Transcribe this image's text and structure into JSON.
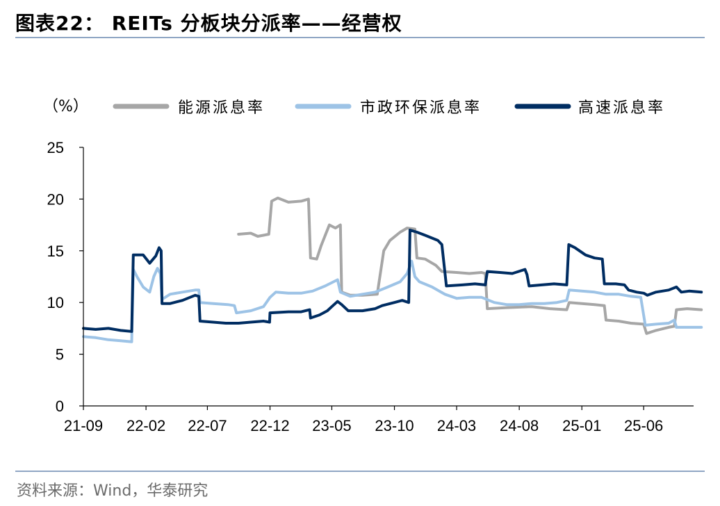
{
  "title": "图表22：  REITs 分板块分派率——经营权",
  "source": "资料来源：Wind，华泰研究",
  "chart_data": {
    "type": "line",
    "unit_label": "（%）",
    "ylim": [
      0,
      25
    ],
    "yticks": [
      "0",
      "5",
      "10",
      "15",
      "20",
      "25"
    ],
    "xticks": [
      "21-09",
      "22-02",
      "22-07",
      "22-12",
      "23-05",
      "23-10",
      "24-03",
      "24-08",
      "25-01",
      "25-06"
    ],
    "xrange": [
      "2021-09",
      "2025-10"
    ],
    "legend_position": "top",
    "series": [
      {
        "name": "能源派息率",
        "color": "#a6a6a6",
        "points": [
          [
            "2022-09-15",
            16.6
          ],
          [
            "2022-10-15",
            16.7
          ],
          [
            "2022-11-01",
            16.4
          ],
          [
            "2022-11-28",
            16.6
          ],
          [
            "2022-12-05",
            19.8
          ],
          [
            "2022-12-20",
            20.1
          ],
          [
            "2023-01-15",
            19.7
          ],
          [
            "2023-02-15",
            19.8
          ],
          [
            "2023-03-05",
            20.0
          ],
          [
            "2023-03-10",
            14.3
          ],
          [
            "2023-03-25",
            14.2
          ],
          [
            "2023-04-05",
            15.5
          ],
          [
            "2023-04-15",
            16.5
          ],
          [
            "2023-04-25",
            17.5
          ],
          [
            "2023-05-10",
            17.2
          ],
          [
            "2023-05-22",
            17.5
          ],
          [
            "2023-05-25",
            11.0
          ],
          [
            "2023-06-15",
            10.7
          ],
          [
            "2023-07-15",
            10.7
          ],
          [
            "2023-08-20",
            10.8
          ],
          [
            "2023-09-05",
            15.0
          ],
          [
            "2023-09-20",
            16.0
          ],
          [
            "2023-10-15",
            16.8
          ],
          [
            "2023-11-01",
            17.2
          ],
          [
            "2023-11-20",
            17.1
          ],
          [
            "2023-11-25",
            14.3
          ],
          [
            "2023-12-15",
            14.2
          ],
          [
            "2024-01-10",
            13.6
          ],
          [
            "2024-01-25",
            13.0
          ],
          [
            "2024-03-01",
            12.9
          ],
          [
            "2024-04-01",
            12.8
          ],
          [
            "2024-05-01",
            12.9
          ],
          [
            "2024-05-10",
            12.8
          ],
          [
            "2024-05-15",
            9.4
          ],
          [
            "2024-07-01",
            9.5
          ],
          [
            "2024-09-01",
            9.6
          ],
          [
            "2024-10-15",
            9.4
          ],
          [
            "2024-11-25",
            9.3
          ],
          [
            "2024-12-01",
            10.0
          ],
          [
            "2025-01-01",
            9.9
          ],
          [
            "2025-02-01",
            9.8
          ],
          [
            "2025-02-25",
            9.7
          ],
          [
            "2025-03-01",
            8.3
          ],
          [
            "2025-04-01",
            8.2
          ],
          [
            "2025-05-01",
            8.0
          ],
          [
            "2025-06-01",
            7.9
          ],
          [
            "2025-06-08",
            7.0
          ],
          [
            "2025-07-01",
            7.3
          ],
          [
            "2025-08-01",
            7.6
          ],
          [
            "2025-08-15",
            7.7
          ],
          [
            "2025-08-20",
            9.3
          ],
          [
            "2025-09-15",
            9.4
          ],
          [
            "2025-10-20",
            9.3
          ]
        ]
      },
      {
        "name": "市政环保派息率",
        "color": "#9dc3e6",
        "points": [
          [
            "2021-09-01",
            6.7
          ],
          [
            "2021-10-01",
            6.6
          ],
          [
            "2021-11-01",
            6.4
          ],
          [
            "2021-12-01",
            6.3
          ],
          [
            "2021-12-28",
            6.2
          ],
          [
            "2022-01-01",
            13.2
          ],
          [
            "2022-01-10",
            12.5
          ],
          [
            "2022-01-25",
            11.5
          ],
          [
            "2022-02-10",
            11.0
          ],
          [
            "2022-02-20",
            12.5
          ],
          [
            "2022-03-01",
            13.3
          ],
          [
            "2022-03-08",
            12.8
          ],
          [
            "2022-03-12",
            10.3
          ],
          [
            "2022-04-01",
            10.8
          ],
          [
            "2022-05-01",
            11.0
          ],
          [
            "2022-06-01",
            11.2
          ],
          [
            "2022-06-10",
            11.2
          ],
          [
            "2022-06-13",
            10.0
          ],
          [
            "2022-07-15",
            9.9
          ],
          [
            "2022-08-20",
            9.8
          ],
          [
            "2022-09-05",
            9.7
          ],
          [
            "2022-09-10",
            9.0
          ],
          [
            "2022-10-15",
            9.2
          ],
          [
            "2022-11-15",
            9.6
          ],
          [
            "2022-12-01",
            10.5
          ],
          [
            "2022-12-15",
            11.0
          ],
          [
            "2023-01-15",
            10.9
          ],
          [
            "2023-02-15",
            10.9
          ],
          [
            "2023-03-15",
            11.1
          ],
          [
            "2023-04-15",
            11.6
          ],
          [
            "2023-05-15",
            12.2
          ],
          [
            "2023-05-22",
            11.0
          ],
          [
            "2023-06-15",
            10.6
          ],
          [
            "2023-07-15",
            10.8
          ],
          [
            "2023-08-15",
            11.0
          ],
          [
            "2023-09-15",
            11.5
          ],
          [
            "2023-10-15",
            12.0
          ],
          [
            "2023-11-01",
            12.8
          ],
          [
            "2023-11-12",
            14.0
          ],
          [
            "2023-11-20",
            12.5
          ],
          [
            "2023-12-01",
            12.0
          ],
          [
            "2024-01-01",
            11.5
          ],
          [
            "2024-02-01",
            10.8
          ],
          [
            "2024-03-01",
            10.4
          ],
          [
            "2024-04-01",
            10.5
          ],
          [
            "2024-05-01",
            10.5
          ],
          [
            "2024-06-01",
            10.0
          ],
          [
            "2024-07-01",
            9.8
          ],
          [
            "2024-08-01",
            9.8
          ],
          [
            "2024-09-01",
            9.9
          ],
          [
            "2024-10-01",
            9.9
          ],
          [
            "2024-11-01",
            10.0
          ],
          [
            "2024-11-25",
            10.2
          ],
          [
            "2024-12-01",
            11.2
          ],
          [
            "2025-01-01",
            11.1
          ],
          [
            "2025-02-01",
            11.0
          ],
          [
            "2025-03-01",
            10.8
          ],
          [
            "2025-04-01",
            10.8
          ],
          [
            "2025-05-01",
            10.6
          ],
          [
            "2025-05-25",
            10.5
          ],
          [
            "2025-06-05",
            7.8
          ],
          [
            "2025-07-01",
            7.9
          ],
          [
            "2025-08-01",
            8.0
          ],
          [
            "2025-08-15",
            8.3
          ],
          [
            "2025-08-20",
            7.6
          ],
          [
            "2025-09-15",
            7.6
          ],
          [
            "2025-10-20",
            7.6
          ]
        ]
      },
      {
        "name": "高速派息率",
        "color": "#002d62",
        "points": [
          [
            "2021-09-01",
            7.5
          ],
          [
            "2021-10-01",
            7.4
          ],
          [
            "2021-11-01",
            7.5
          ],
          [
            "2021-12-01",
            7.3
          ],
          [
            "2021-12-28",
            7.2
          ],
          [
            "2022-01-01",
            14.6
          ],
          [
            "2022-01-25",
            14.6
          ],
          [
            "2022-02-10",
            13.8
          ],
          [
            "2022-02-25",
            14.5
          ],
          [
            "2022-03-05",
            15.3
          ],
          [
            "2022-03-10",
            15.0
          ],
          [
            "2022-03-12",
            9.9
          ],
          [
            "2022-04-01",
            9.9
          ],
          [
            "2022-05-01",
            10.2
          ],
          [
            "2022-06-01",
            10.7
          ],
          [
            "2022-06-10",
            10.6
          ],
          [
            "2022-06-13",
            8.2
          ],
          [
            "2022-07-15",
            8.1
          ],
          [
            "2022-08-15",
            8.0
          ],
          [
            "2022-09-15",
            8.0
          ],
          [
            "2022-10-15",
            8.1
          ],
          [
            "2022-11-15",
            8.2
          ],
          [
            "2022-11-30",
            8.1
          ],
          [
            "2022-12-01",
            9.0
          ],
          [
            "2023-01-15",
            9.1
          ],
          [
            "2023-02-15",
            9.1
          ],
          [
            "2023-03-08",
            9.3
          ],
          [
            "2023-03-10",
            8.5
          ],
          [
            "2023-04-01",
            8.8
          ],
          [
            "2023-04-20",
            9.2
          ],
          [
            "2023-05-01",
            9.6
          ],
          [
            "2023-05-15",
            10.1
          ],
          [
            "2023-05-25",
            9.8
          ],
          [
            "2023-06-10",
            9.2
          ],
          [
            "2023-07-15",
            9.2
          ],
          [
            "2023-08-15",
            9.4
          ],
          [
            "2023-09-01",
            9.7
          ],
          [
            "2023-10-01",
            10.0
          ],
          [
            "2023-10-20",
            10.2
          ],
          [
            "2023-11-05",
            10.0
          ],
          [
            "2023-11-08",
            17.0
          ],
          [
            "2023-11-25",
            16.8
          ],
          [
            "2023-12-15",
            16.5
          ],
          [
            "2024-01-15",
            16.0
          ],
          [
            "2024-01-25",
            15.6
          ],
          [
            "2024-02-05",
            11.6
          ],
          [
            "2024-03-15",
            11.7
          ],
          [
            "2024-04-15",
            11.8
          ],
          [
            "2024-05-10",
            11.7
          ],
          [
            "2024-05-15",
            13.0
          ],
          [
            "2024-06-15",
            12.9
          ],
          [
            "2024-07-15",
            12.8
          ],
          [
            "2024-08-15",
            13.2
          ],
          [
            "2024-08-20",
            12.7
          ],
          [
            "2024-08-25",
            11.6
          ],
          [
            "2024-09-25",
            11.7
          ],
          [
            "2024-10-25",
            11.8
          ],
          [
            "2024-11-25",
            11.7
          ],
          [
            "2024-11-30",
            15.6
          ],
          [
            "2024-12-15",
            15.3
          ],
          [
            "2025-01-10",
            14.6
          ],
          [
            "2025-02-01",
            14.3
          ],
          [
            "2025-02-20",
            14.2
          ],
          [
            "2025-02-25",
            11.8
          ],
          [
            "2025-03-25",
            11.8
          ],
          [
            "2025-04-15",
            11.7
          ],
          [
            "2025-04-25",
            11.2
          ],
          [
            "2025-05-15",
            11.0
          ],
          [
            "2025-06-01",
            10.9
          ],
          [
            "2025-06-10",
            10.7
          ],
          [
            "2025-07-01",
            11.0
          ],
          [
            "2025-08-01",
            11.2
          ],
          [
            "2025-08-20",
            11.5
          ],
          [
            "2025-09-01",
            11.0
          ],
          [
            "2025-09-20",
            11.1
          ],
          [
            "2025-10-20",
            11.0
          ]
        ]
      }
    ]
  }
}
